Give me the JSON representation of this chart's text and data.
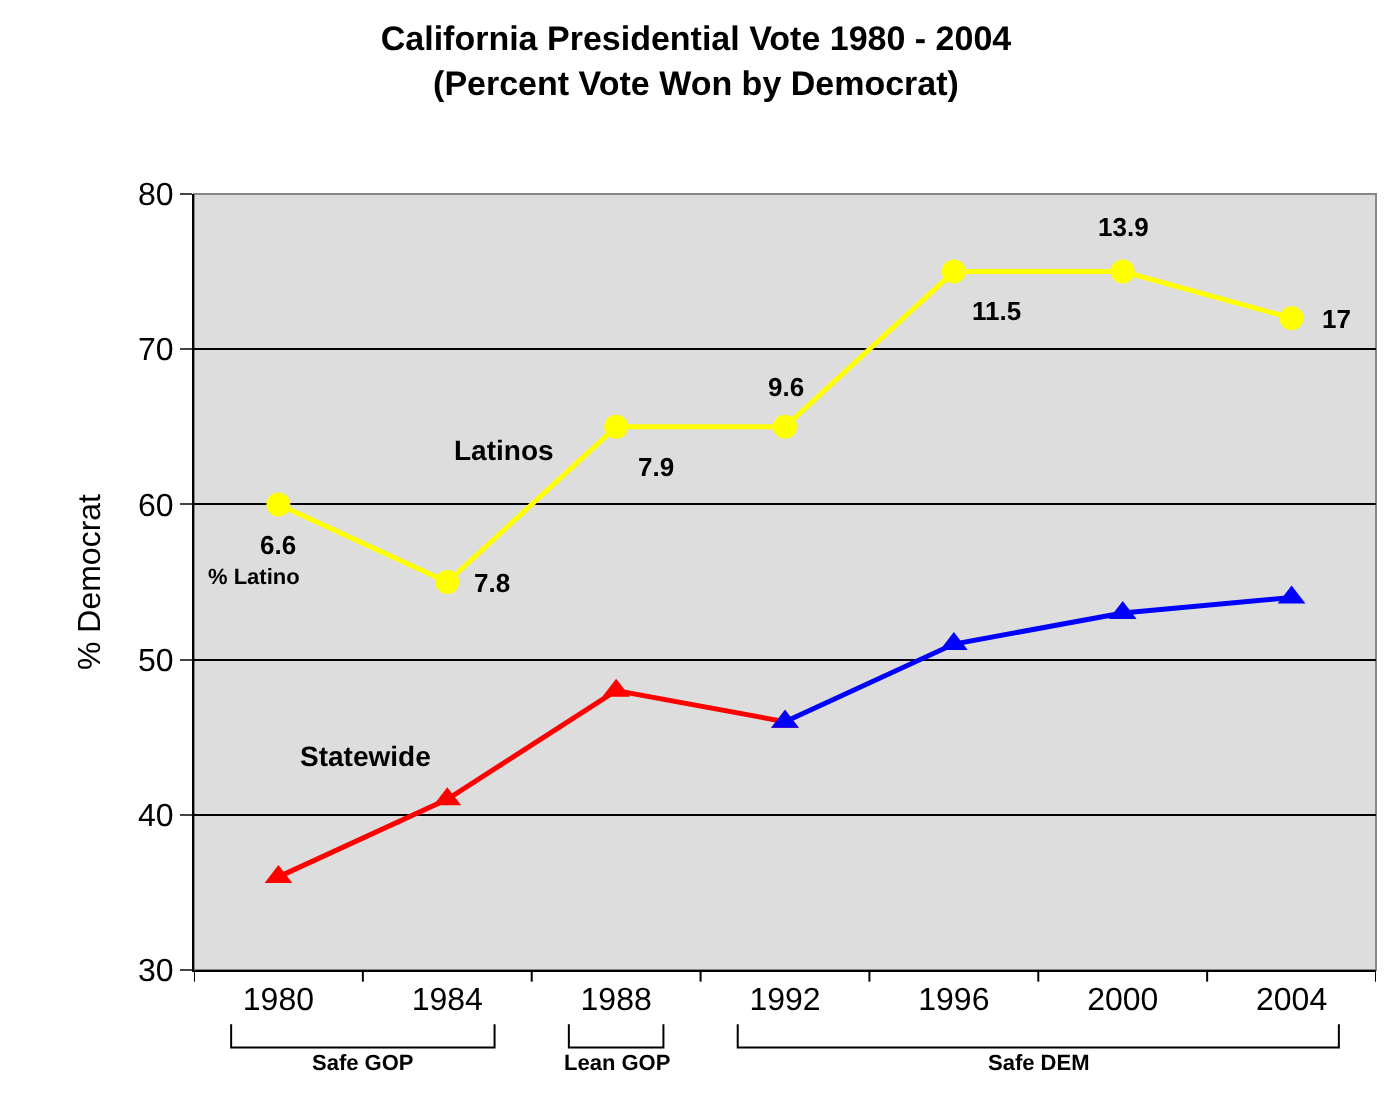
{
  "chart_data": {
    "type": "line",
    "title": "California Presidential Vote 1980 - 2004",
    "subtitle": "(Percent Vote Won by Democrat)",
    "ylabel": "% Democrat",
    "categories": [
      "1980",
      "1984",
      "1988",
      "1992",
      "1996",
      "2000",
      "2004"
    ],
    "series": [
      {
        "name": "Latinos",
        "color": "#ffff00",
        "marker": "circle",
        "values": [
          60,
          55,
          65,
          65,
          75,
          75,
          72
        ]
      },
      {
        "name": "Statewide",
        "color": "#ff0000",
        "marker": "triangle",
        "values": [
          36,
          41,
          48,
          46,
          null,
          null,
          null
        ]
      },
      {
        "color": "#0000ff",
        "marker": "triangle",
        "values": [
          null,
          null,
          null,
          46,
          51,
          53,
          54
        ]
      }
    ],
    "ylim": [
      30,
      80
    ],
    "yticks": [
      30,
      40,
      50,
      60,
      70,
      80
    ],
    "grid": "y",
    "legend": false,
    "line_style": "solid",
    "annotations": [
      {
        "text": "6.6",
        "x": "1980",
        "y": 60
      },
      {
        "text": "% Latino",
        "x": "1980",
        "y": 60
      },
      {
        "text": "7.8",
        "x": "1984",
        "y": 55
      },
      {
        "text": "7.9",
        "x": "1988",
        "y": 65
      },
      {
        "text": "9.6",
        "x": "1992",
        "y": 65
      },
      {
        "text": "11.5",
        "x": "1996",
        "y": 75
      },
      {
        "text": "13.9",
        "x": "2000",
        "y": 75
      },
      {
        "text": "17",
        "x": "2004",
        "y": 72
      },
      "Safe GOP",
      "Lean GOP",
      "Safe DEM"
    ]
  }
}
